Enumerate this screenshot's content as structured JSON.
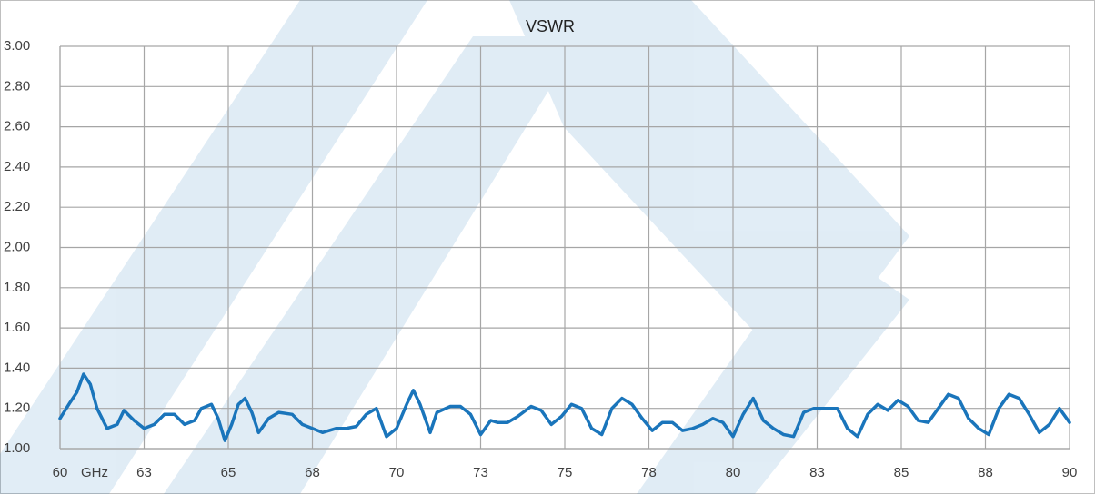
{
  "chart_data": {
    "type": "line",
    "title": "VSWR",
    "x_label": "GHz",
    "color": "#1a75bb",
    "grid": true,
    "x": [
      60.0,
      60.3,
      60.5,
      60.7,
      60.9,
      61.1,
      61.4,
      61.7,
      61.9,
      62.2,
      62.5,
      62.8,
      63.1,
      63.4,
      63.7,
      64.0,
      64.2,
      64.5,
      64.7,
      64.9,
      65.1,
      65.3,
      65.5,
      65.7,
      65.9,
      66.2,
      66.5,
      66.9,
      67.2,
      67.5,
      67.8,
      68.2,
      68.5,
      68.8,
      69.1,
      69.4,
      69.7,
      70.0,
      70.3,
      70.5,
      70.7,
      71.0,
      71.2,
      71.6,
      71.9,
      72.2,
      72.5,
      72.8,
      73.0,
      73.3,
      73.6,
      74.0,
      74.3,
      74.6,
      74.9,
      75.2,
      75.5,
      75.8,
      76.1,
      76.4,
      76.7,
      77.0,
      77.3,
      77.6,
      77.9,
      78.2,
      78.5,
      78.8,
      79.1,
      79.4,
      79.7,
      80.0,
      80.3,
      80.6,
      80.9,
      81.2,
      81.5,
      81.8,
      82.1,
      82.4,
      82.8,
      83.1,
      83.4,
      83.7,
      84.0,
      84.3,
      84.6,
      84.9,
      85.2,
      85.5,
      85.8,
      86.1,
      86.4,
      86.7,
      87.0,
      87.3,
      87.6,
      87.9,
      88.2,
      88.5,
      88.8,
      89.1,
      89.4,
      89.7,
      90.0
    ],
    "values": [
      1.15,
      1.23,
      1.28,
      1.37,
      1.32,
      1.2,
      1.1,
      1.12,
      1.19,
      1.14,
      1.1,
      1.12,
      1.17,
      1.17,
      1.12,
      1.14,
      1.2,
      1.22,
      1.15,
      1.04,
      1.12,
      1.22,
      1.25,
      1.18,
      1.08,
      1.15,
      1.18,
      1.17,
      1.12,
      1.1,
      1.08,
      1.1,
      1.1,
      1.11,
      1.17,
      1.2,
      1.06,
      1.1,
      1.22,
      1.29,
      1.22,
      1.08,
      1.18,
      1.21,
      1.21,
      1.17,
      1.07,
      1.14,
      1.13,
      1.13,
      1.16,
      1.21,
      1.19,
      1.12,
      1.16,
      1.22,
      1.2,
      1.1,
      1.07,
      1.2,
      1.25,
      1.22,
      1.15,
      1.09,
      1.13,
      1.13,
      1.09,
      1.1,
      1.12,
      1.15,
      1.13,
      1.06,
      1.17,
      1.25,
      1.14,
      1.1,
      1.07,
      1.06,
      1.18,
      1.2,
      1.2,
      1.2,
      1.1,
      1.06,
      1.17,
      1.22,
      1.19,
      1.24,
      1.21,
      1.14,
      1.13,
      1.2,
      1.27,
      1.25,
      1.15,
      1.1,
      1.07,
      1.2,
      1.27,
      1.25,
      1.17,
      1.08,
      1.12,
      1.2,
      1.13
    ],
    "xlim": [
      60,
      90
    ],
    "xticks": [
      60,
      {
        "value": 62.5,
        "label": "63"
      },
      65,
      {
        "value": 67.5,
        "label": "68"
      },
      70,
      {
        "value": 72.5,
        "label": "73"
      },
      75,
      {
        "value": 77.5,
        "label": "78"
      },
      80,
      {
        "value": 82.5,
        "label": "83"
      },
      85,
      {
        "value": 87.5,
        "label": "88"
      },
      90
    ],
    "ylim": [
      1,
      3
    ],
    "yticks": [
      {
        "value": 1,
        "label": "1.00"
      },
      {
        "value": 1.2,
        "label": "1.20"
      },
      {
        "value": 1.4,
        "label": "1.40"
      },
      {
        "value": 1.6,
        "label": "1.60"
      },
      {
        "value": 1.8,
        "label": "1.80"
      },
      {
        "value": 2,
        "label": "2.00"
      },
      {
        "value": 2.2,
        "label": "2.20"
      },
      {
        "value": 2.4,
        "label": "2.40"
      },
      {
        "value": 2.6,
        "label": "2.60"
      },
      {
        "value": 2.8,
        "label": "2.80"
      },
      {
        "value": 3,
        "label": "3.00"
      }
    ]
  }
}
